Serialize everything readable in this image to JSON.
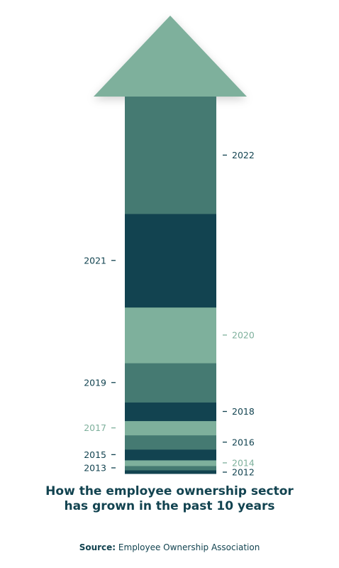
{
  "caption": {
    "line1": "How the employee ownership sector",
    "line2": "has grown in the past 10 years"
  },
  "source": {
    "label": "Source:",
    "text": "Employee Ownership Association"
  },
  "colors": {
    "dark": "#124350",
    "mid": "#457a72",
    "light": "#7eb09c",
    "text_dark": "#124350"
  },
  "chart_data": {
    "type": "bar",
    "orientation": "stacked-vertical-arrow",
    "title": "",
    "categories": [
      "2012",
      "2013",
      "2014",
      "2015",
      "2016",
      "2017",
      "2018",
      "2019",
      "2020",
      "2021",
      "2022"
    ],
    "values": [
      5,
      6,
      8,
      15,
      20,
      20,
      26,
      55,
      78,
      131,
      164
    ],
    "label_sides": [
      "right",
      "left",
      "right",
      "left",
      "right",
      "left",
      "right",
      "left",
      "right",
      "left",
      "right"
    ],
    "fills": [
      "dark",
      "mid",
      "light",
      "dark",
      "mid",
      "light",
      "dark",
      "mid",
      "light",
      "dark",
      "mid"
    ],
    "label_colors": [
      "dark",
      "dark",
      "light",
      "dark",
      "dark",
      "light",
      "dark",
      "dark",
      "light",
      "dark",
      "dark"
    ],
    "legend": "none",
    "grid": false
  }
}
